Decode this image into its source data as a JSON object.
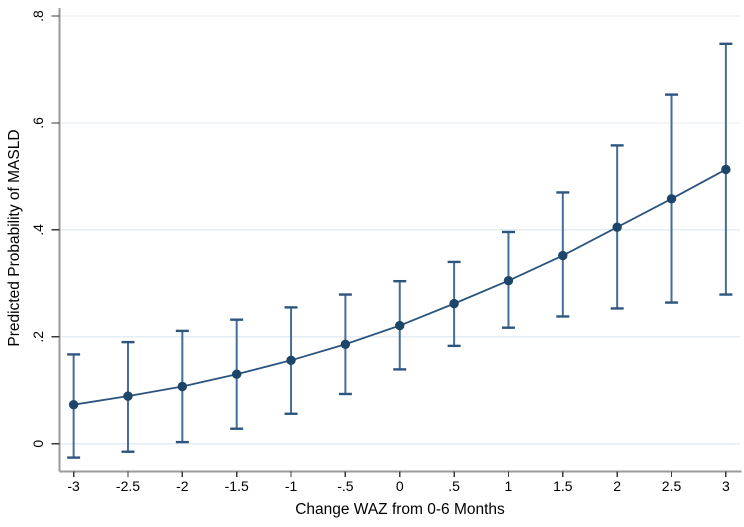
{
  "chart_data": {
    "type": "line",
    "title": "",
    "xlabel": "Change WAZ from 0-6 Months",
    "ylabel": "Predicted Probability of MASLD",
    "x": [
      -3,
      -2.5,
      -2,
      -1.5,
      -1,
      -0.5,
      0,
      0.5,
      1,
      1.5,
      2,
      2.5,
      3
    ],
    "series": [
      {
        "name": "Predicted Probability of MASLD",
        "values": [
          0.073,
          0.089,
          0.107,
          0.13,
          0.156,
          0.186,
          0.221,
          0.262,
          0.305,
          0.352,
          0.405,
          0.458,
          0.513
        ],
        "ci_lower": [
          -0.026,
          -0.015,
          0.003,
          0.028,
          0.056,
          0.093,
          0.139,
          0.183,
          0.217,
          0.238,
          0.253,
          0.264,
          0.279
        ],
        "ci_upper": [
          0.167,
          0.19,
          0.211,
          0.232,
          0.255,
          0.279,
          0.304,
          0.34,
          0.396,
          0.47,
          0.558,
          0.653,
          0.748
        ]
      }
    ],
    "x_tick_labels": [
      "-3",
      "-2.5",
      "-2",
      "-1.5",
      "-1",
      "-.5",
      "0",
      ".5",
      "1",
      "1.5",
      "2",
      "2.5",
      "3"
    ],
    "x_tick_values": [
      -3,
      -2.5,
      -2,
      -1.5,
      -1,
      -0.5,
      0,
      0.5,
      1,
      1.5,
      2,
      2.5,
      3
    ],
    "y_tick_labels": [
      "0",
      ".2",
      ".4",
      ".6",
      ".8"
    ],
    "y_tick_values": [
      0,
      0.2,
      0.4,
      0.6,
      0.8
    ],
    "xlim": [
      -3.13,
      3.13
    ],
    "ylim": [
      -0.052,
      0.815
    ],
    "grid": "horizontal",
    "legend": "none",
    "colors": {
      "line": "#2a547e",
      "marker": "#1c4569",
      "ci_line": "#456d99",
      "ci_cap": "#2d567f",
      "grid": "#e5eef3",
      "axis": "#9a9a9a",
      "tick": "#3a3a3a",
      "text": "#000000",
      "background": "#ffffff"
    }
  }
}
